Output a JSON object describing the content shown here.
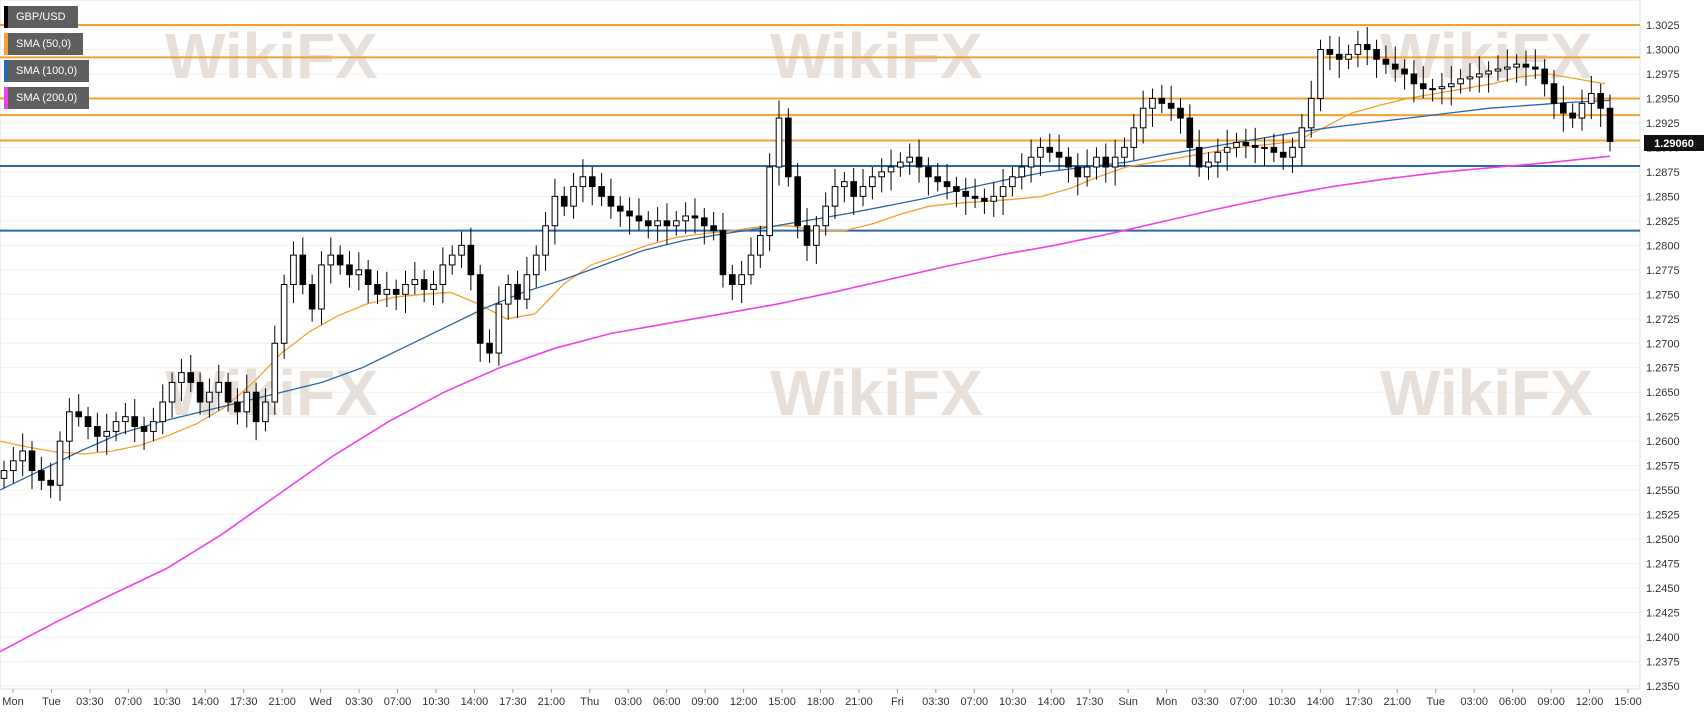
{
  "symbol": "GBP/USD",
  "legend": [
    {
      "label": "GBP/USD",
      "color": "#000000"
    },
    {
      "label": "SMA (50,0)",
      "color": "#f5a030"
    },
    {
      "label": "SMA (100,0)",
      "color": "#2b66a8"
    },
    {
      "label": "SMA (200,0)",
      "color": "#f040e8"
    }
  ],
  "watermark_text": "WikiFX",
  "price_tag": "1.29060",
  "chart_data": {
    "type": "line",
    "title": "GBP/USD",
    "ylim": [
      1.235,
      1.3025
    ],
    "y_ticks": [
      "1.3025",
      "1.3000",
      "1.2975",
      "1.2950",
      "1.2925",
      "1.2900",
      "1.2875",
      "1.2850",
      "1.2825",
      "1.2800",
      "1.2775",
      "1.2750",
      "1.2725",
      "1.2700",
      "1.2675",
      "1.2650",
      "1.2625",
      "1.2600",
      "1.2575",
      "1.2550",
      "1.2525",
      "1.2500",
      "1.2475",
      "1.2450",
      "1.2425",
      "1.2400",
      "1.2375",
      "1.2350"
    ],
    "x_ticks": [
      "Mon",
      "Tue",
      "03:30",
      "07:00",
      "10:30",
      "14:00",
      "17:30",
      "21:00",
      "Wed",
      "03:30",
      "07:00",
      "10:30",
      "14:00",
      "17:30",
      "21:00",
      "Thu",
      "03:00",
      "06:00",
      "09:00",
      "12:00",
      "15:00",
      "18:00",
      "21:00",
      "Fri",
      "03:30",
      "07:00",
      "10:30",
      "14:00",
      "17:30",
      "Sun",
      "Mon",
      "03:30",
      "07:00",
      "10:30",
      "14:00",
      "17:30",
      "21:00",
      "Tue",
      "03:00",
      "06:00",
      "09:00",
      "12:00",
      "15:00"
    ],
    "horizontal_levels": [
      {
        "value": 1.3025,
        "color": "#f5a030"
      },
      {
        "value": 1.2992,
        "color": "#f5a030"
      },
      {
        "value": 1.295,
        "color": "#f5a030"
      },
      {
        "value": 1.2933,
        "color": "#f5a030"
      },
      {
        "value": 1.2907,
        "color": "#f5a030"
      },
      {
        "value": 1.2881,
        "color": "#2b66a8"
      },
      {
        "value": 1.2815,
        "color": "#2b66a8"
      }
    ],
    "series": [
      {
        "name": "GBP/USD",
        "color": "#000000",
        "values": [
          1.257,
          1.258,
          1.259,
          1.257,
          1.256,
          1.2555,
          1.26,
          1.263,
          1.2625,
          1.2615,
          1.2605,
          1.261,
          1.262,
          1.2625,
          1.2615,
          1.261,
          1.262,
          1.264,
          1.266,
          1.267,
          1.266,
          1.264,
          1.265,
          1.266,
          1.264,
          1.263,
          1.265,
          1.262,
          1.264,
          1.27,
          1.276,
          1.279,
          1.276,
          1.2735,
          1.278,
          1.279,
          1.278,
          1.277,
          1.2775,
          1.276,
          1.275,
          1.2755,
          1.275,
          1.276,
          1.2765,
          1.2755,
          1.276,
          1.278,
          1.279,
          1.28,
          1.277,
          1.27,
          1.269,
          1.274,
          1.276,
          1.2745,
          1.277,
          1.279,
          1.282,
          1.285,
          1.284,
          1.286,
          1.287,
          1.286,
          1.285,
          1.284,
          1.2835,
          1.283,
          1.2825,
          1.282,
          1.2825,
          1.282,
          1.2825,
          1.283,
          1.2828,
          1.282,
          1.2815,
          1.277,
          1.276,
          1.277,
          1.279,
          1.281,
          1.288,
          1.293,
          1.287,
          1.282,
          1.28,
          1.282,
          1.284,
          1.286,
          1.2865,
          1.285,
          1.286,
          1.287,
          1.2875,
          1.288,
          1.2885,
          1.289,
          1.288,
          1.287,
          1.2865,
          1.286,
          1.2855,
          1.285,
          1.2848,
          1.2845,
          1.285,
          1.286,
          1.287,
          1.288,
          1.289,
          1.29,
          1.2895,
          1.289,
          1.288,
          1.287,
          1.288,
          1.289,
          1.288,
          1.289,
          1.29,
          1.292,
          1.294,
          1.295,
          1.2945,
          1.294,
          1.293,
          1.29,
          1.288,
          1.2885,
          1.2895,
          1.29,
          1.2905,
          1.2902,
          1.29,
          1.29,
          1.2895,
          1.289,
          1.29,
          1.292,
          1.295,
          1.3,
          1.2995,
          1.299,
          1.2995,
          1.3005,
          1.3,
          1.299,
          1.2985,
          1.298,
          1.2975,
          1.2965,
          1.296,
          1.296,
          1.2962,
          1.2965,
          1.297,
          1.2972,
          1.2975,
          1.2978,
          1.298,
          1.2982,
          1.2985,
          1.2982,
          1.298,
          1.2965,
          1.2945,
          1.2935,
          1.293,
          1.2945,
          1.2955,
          1.294,
          1.2906
        ]
      },
      {
        "name": "SMA (50,0)",
        "color": "#f5a030",
        "values": [
          1.26,
          1.2594,
          1.2589,
          1.2587,
          1.259,
          1.2596,
          1.2606,
          1.2618,
          1.2635,
          1.266,
          1.269,
          1.2712,
          1.2728,
          1.274,
          1.2747,
          1.275,
          1.2752,
          1.274,
          1.2725,
          1.273,
          1.276,
          1.278,
          1.279,
          1.28,
          1.2808,
          1.2812,
          1.2815,
          1.2819,
          1.282,
          1.2815,
          1.2815,
          1.2822,
          1.2832,
          1.284,
          1.2843,
          1.2845,
          1.2847,
          1.285,
          1.2858,
          1.287,
          1.288,
          1.2885,
          1.289,
          1.2895,
          1.29,
          1.2903,
          1.2906,
          1.292,
          1.2935,
          1.2943,
          1.295,
          1.2955,
          1.296,
          1.2965,
          1.2972,
          1.2975,
          1.297,
          1.2965
        ]
      },
      {
        "name": "SMA (100,0)",
        "color": "#2b66a8",
        "values": [
          1.255,
          1.257,
          1.259,
          1.2608,
          1.262,
          1.263,
          1.264,
          1.265,
          1.266,
          1.2675,
          1.2695,
          1.2715,
          1.2735,
          1.2752,
          1.2765,
          1.278,
          1.2795,
          1.2805,
          1.2812,
          1.2818,
          1.2825,
          1.2832,
          1.284,
          1.2848,
          1.2858,
          1.2867,
          1.2875,
          1.288,
          1.2885,
          1.2893,
          1.29,
          1.2907,
          1.2914,
          1.292,
          1.2925,
          1.293,
          1.2935,
          1.294,
          1.2943,
          1.2946,
          1.2948
        ]
      },
      {
        "name": "SMA (200,0)",
        "color": "#f040e8",
        "values": [
          1.2385,
          1.2415,
          1.2443,
          1.247,
          1.2505,
          1.2545,
          1.2585,
          1.262,
          1.265,
          1.2675,
          1.2695,
          1.271,
          1.272,
          1.273,
          1.274,
          1.2752,
          1.2765,
          1.2778,
          1.279,
          1.28,
          1.2812,
          1.2825,
          1.2838,
          1.285,
          1.286,
          1.2868,
          1.2875,
          1.288,
          1.2885,
          1.2891
        ]
      }
    ],
    "grid": true,
    "legend_position": "top-left"
  }
}
